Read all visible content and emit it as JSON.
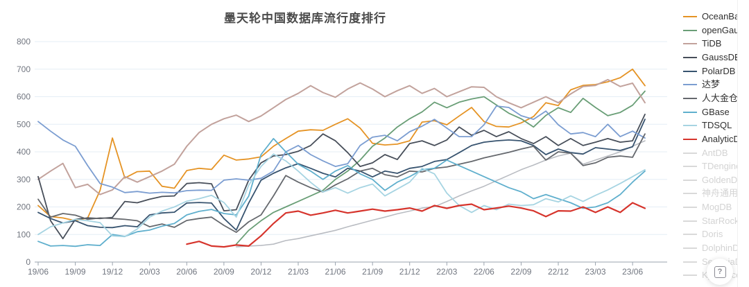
{
  "title": "墨天轮中国数据库流行度排行",
  "help_button": {
    "icon": "?"
  },
  "colors": {
    "grid": "#e4edf6",
    "axis": "#9aa3ae",
    "tick_text": "#70757f",
    "muted_line": "#b9bcc2",
    "muted_legend_text": "#d3d3d3"
  },
  "chart_data": {
    "type": "line",
    "title": "墨天轮中国数据库流行度排行",
    "xlabel": "",
    "ylabel": "",
    "ylim": [
      0,
      800
    ],
    "y_ticks": [
      0,
      100,
      200,
      300,
      400,
      500,
      600,
      700,
      800
    ],
    "grid": "horizontal",
    "legend_position": "right",
    "x_unit": "month",
    "x_tick_labels": [
      "19/06",
      "19/09",
      "19/12",
      "20/03",
      "20/06",
      "20/09",
      "20/12",
      "21/03",
      "21/06",
      "21/09",
      "21/12",
      "22/03",
      "22/06",
      "22/09",
      "22/12",
      "23/03",
      "23/06"
    ],
    "x_months_total": 50,
    "series": [
      {
        "name": "OceanBase",
        "color": "#e59324",
        "width": 1.8,
        "start": 0,
        "values": [
          205,
          165,
          160,
          150,
          160,
          260,
          450,
          305,
          328,
          330,
          275,
          268,
          332,
          340,
          336,
          388,
          370,
          374,
          382,
          420,
          448,
          475,
          480,
          478,
          500,
          520,
          486,
          431,
          425,
          428,
          440,
          508,
          513,
          498,
          530,
          561,
          510,
          492,
          490,
          505,
          528,
          578,
          568,
          625,
          641,
          644,
          654,
          669,
          700,
          640
        ]
      },
      {
        "name": "openGauss",
        "color": "#699e76",
        "width": 1.8,
        "start": 16,
        "values": [
          65,
          115,
          150,
          180,
          200,
          220,
          240,
          260,
          300,
          330,
          370,
          420,
          450,
          490,
          520,
          545,
          580,
          560,
          580,
          592,
          600,
          570,
          540,
          520,
          490,
          532,
          560,
          543,
          594,
          561,
          531,
          543,
          569,
          620
        ]
      },
      {
        "name": "TiDB",
        "color": "#c2a29c",
        "width": 2.0,
        "start": 0,
        "values": [
          300,
          330,
          358,
          270,
          282,
          245,
          262,
          310,
          290,
          310,
          330,
          355,
          420,
          470,
          500,
          520,
          533,
          510,
          530,
          560,
          590,
          612,
          640,
          615,
          598,
          628,
          650,
          628,
          600,
          622,
          640,
          612,
          630,
          600,
          618,
          636,
          634,
          600,
          578,
          560,
          580,
          600,
          578,
          610,
          637,
          641,
          662,
          637,
          649,
          578
        ]
      },
      {
        "name": "GaussDB",
        "color": "#474e59",
        "width": 1.8,
        "start": 0,
        "values": [
          310,
          150,
          85,
          155,
          160,
          158,
          162,
          220,
          215,
          228,
          238,
          240,
          285,
          288,
          284,
          186,
          190,
          297,
          360,
          385,
          390,
          402,
          423,
          465,
          440,
          397,
          347,
          360,
          390,
          372,
          430,
          440,
          423,
          443,
          490,
          460,
          478,
          455,
          473,
          448,
          430,
          455,
          423,
          448,
          423,
          435,
          448,
          435,
          440,
          536
        ]
      },
      {
        "name": "PolarDB",
        "color": "#37536f",
        "width": 1.8,
        "start": 0,
        "values": [
          180,
          158,
          142,
          150,
          132,
          126,
          125,
          132,
          128,
          171,
          178,
          181,
          214,
          216,
          214,
          158,
          116,
          214,
          297,
          322,
          342,
          357,
          340,
          322,
          309,
          340,
          330,
          309,
          330,
          322,
          340,
          347,
          365,
          372,
          397,
          423,
          435,
          440,
          443,
          440,
          423,
          390,
          410,
          397,
          392,
          415,
          410,
          405,
          418,
          518
        ]
      },
      {
        "name": "达梦",
        "color": "#7b9dd1",
        "width": 1.8,
        "start": 0,
        "values": [
          510,
          475,
          443,
          420,
          350,
          285,
          272,
          252,
          256,
          250,
          253,
          251,
          259,
          261,
          260,
          297,
          302,
          297,
          304,
          330,
          400,
          423,
          390,
          367,
          347,
          357,
          423,
          453,
          460,
          440,
          473,
          493,
          518,
          486,
          455,
          455,
          498,
          566,
          561,
          531,
          518,
          548,
          498,
          465,
          470,
          455,
          500,
          455,
          475,
          450
        ]
      },
      {
        "name": "人大金仓",
        "color": "#65686d",
        "width": 1.8,
        "start": 0,
        "values": [
          228,
          163,
          176,
          170,
          155,
          160,
          158,
          155,
          150,
          128,
          138,
          126,
          151,
          158,
          163,
          133,
          108,
          146,
          171,
          240,
          314,
          290,
          270,
          254,
          280,
          302,
          330,
          340,
          317,
          309,
          330,
          327,
          340,
          345,
          355,
          365,
          378,
          388,
          398,
          410,
          420,
          370,
          400,
          395,
          350,
          360,
          380,
          385,
          380,
          465
        ]
      },
      {
        "name": "GBase",
        "color": "#5fafcd",
        "width": 1.8,
        "start": 0,
        "values": [
          75,
          58,
          60,
          57,
          63,
          60,
          100,
          93,
          110,
          116,
          130,
          140,
          171,
          184,
          191,
          176,
          171,
          239,
          390,
          448,
          400,
          355,
          330,
          300,
          330,
          350,
          320,
          300,
          260,
          290,
          310,
          335,
          340,
          370,
          350,
          330,
          310,
          290,
          270,
          255,
          230,
          245,
          230,
          215,
          195,
          200,
          215,
          245,
          290,
          330
        ]
      },
      {
        "name": "TDSQL",
        "color": "#a6d4e2",
        "width": 1.8,
        "start": 0,
        "values": [
          100,
          128,
          142,
          155,
          150,
          143,
          95,
          92,
          120,
          163,
          185,
          200,
          221,
          230,
          242,
          216,
          163,
          279,
          347,
          392,
          367,
          330,
          289,
          254,
          270,
          250,
          270,
          283,
          240,
          265,
          290,
          340,
          320,
          250,
          205,
          180,
          205,
          190,
          210,
          205,
          208,
          230,
          218,
          240,
          220,
          242,
          262,
          285,
          310,
          335
        ]
      },
      {
        "name": "AnalyticDB",
        "color": "#d6342c",
        "width": 2.2,
        "start": 12,
        "values": [
          65,
          75,
          58,
          55,
          62,
          58,
          95,
          140,
          178,
          185,
          170,
          178,
          188,
          178,
          185,
          192,
          185,
          190,
          196,
          185,
          205,
          195,
          205,
          210,
          190,
          196,
          203,
          196,
          186,
          165,
          186,
          185,
          200,
          180,
          200,
          180,
          215,
          195
        ]
      }
    ],
    "unhighlighted_line": {
      "color": "#b9bcc2",
      "width": 1.6,
      "start": 16,
      "values": [
        55,
        58,
        60,
        65,
        78,
        85,
        95,
        105,
        115,
        128,
        140,
        152,
        163,
        175,
        185,
        196,
        201,
        220,
        240,
        258,
        275,
        295,
        315,
        335,
        352,
        370,
        385,
        395,
        355,
        370,
        385,
        400,
        420,
        440
      ]
    },
    "muted_legend_items": [
      "AntDB",
      "TDengine",
      "GoldenDB",
      "神舟通用",
      "MogDB",
      "StarRocks",
      "Doris",
      "DolphinDB",
      "SequoiaDB",
      "Kyligence"
    ]
  }
}
